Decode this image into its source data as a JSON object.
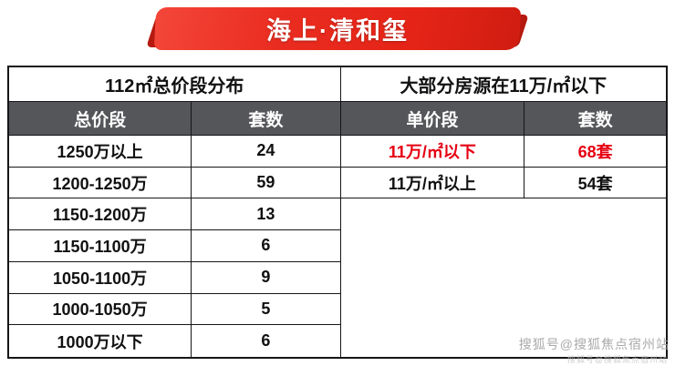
{
  "banner": {
    "title": "海上·清和玺"
  },
  "chart_data": [
    {
      "type": "table",
      "title": "112㎡总价段分布",
      "columns": [
        "总价段",
        "套数"
      ],
      "rows": [
        [
          "1250万以上",
          "24"
        ],
        [
          "1200-1250万",
          "59"
        ],
        [
          "1150-1200万",
          "13"
        ],
        [
          "1150-1100万",
          "6"
        ],
        [
          "1050-1100万",
          "9"
        ],
        [
          "1000-1050万",
          "5"
        ],
        [
          "1000万以下",
          "6"
        ]
      ]
    },
    {
      "type": "table",
      "title": "大部分房源在11万/㎡以下",
      "columns": [
        "单价段",
        "套数"
      ],
      "rows": [
        [
          "11万/㎡以下",
          "68套"
        ],
        [
          "11万/㎡以上",
          "54套"
        ]
      ],
      "highlight_row": 0,
      "highlight_color": "#e60012"
    }
  ],
  "colors": {
    "banner_red": "#e52417",
    "banner_dark_red": "#b5190f",
    "header_bg": "#55565a",
    "highlight": "#e60012",
    "border": "#161616"
  },
  "watermark": "搜狐号@搜狐焦点宿州站"
}
